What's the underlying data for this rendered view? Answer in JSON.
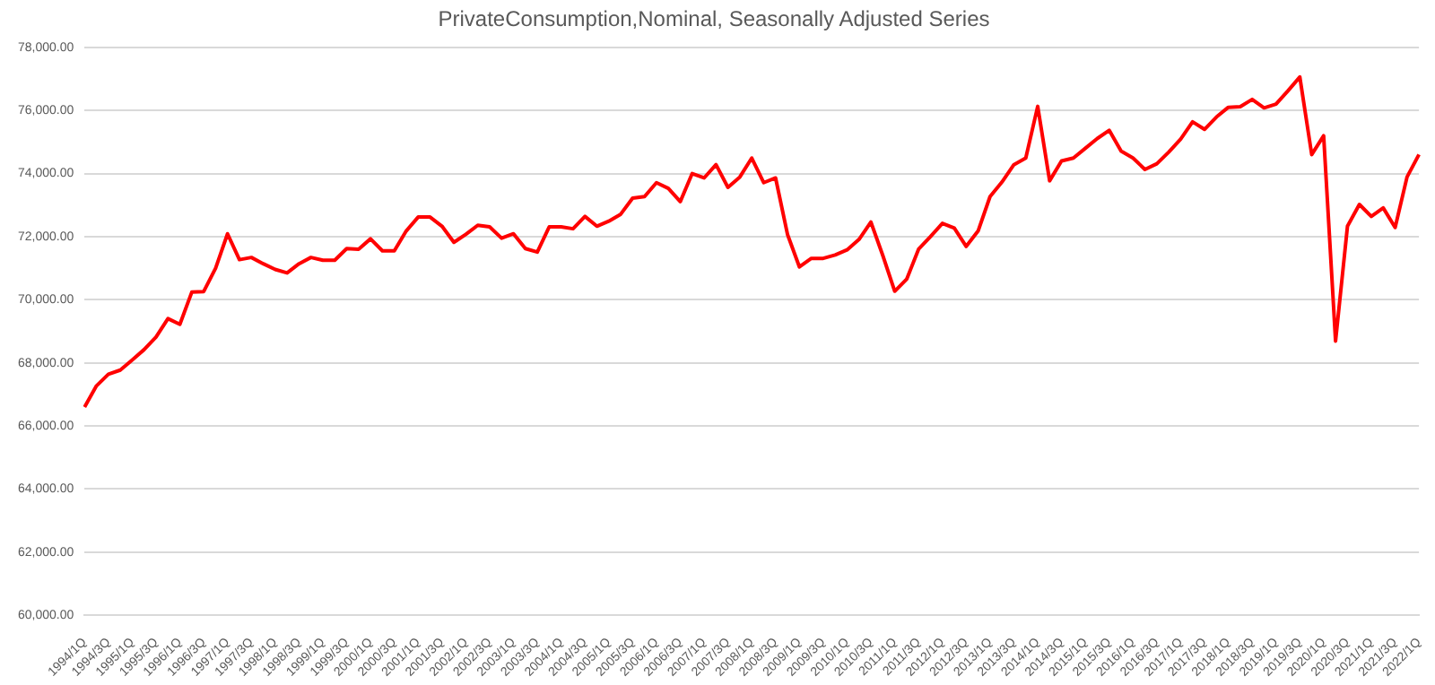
{
  "chart_data": {
    "type": "line",
    "title": "PrivateConsumption,Nominal, Seasonally Adjusted Series",
    "categories": [
      "1994/1Q",
      null,
      "1994/3Q",
      null,
      "1995/1Q",
      null,
      "1995/3Q",
      null,
      "1996/1Q",
      null,
      "1996/3Q",
      null,
      "1997/1Q",
      null,
      "1997/3Q",
      null,
      "1998/1Q",
      null,
      "1998/3Q",
      null,
      "1999/1Q",
      null,
      "1999/3Q",
      null,
      "2000/1Q",
      null,
      "2000/3Q",
      null,
      "2001/1Q",
      null,
      "2001/3Q",
      null,
      "2002/1Q",
      null,
      "2002/3Q",
      null,
      "2003/1Q",
      null,
      "2003/3Q",
      null,
      "2004/1Q",
      null,
      "2004/3Q",
      null,
      "2005/1Q",
      null,
      "2005/3Q",
      null,
      "2006/1Q",
      null,
      "2006/3Q",
      null,
      "2007/1Q",
      null,
      "2007/3Q",
      null,
      "2008/1Q",
      null,
      "2008/3Q",
      null,
      "2009/1Q",
      null,
      "2009/3Q",
      null,
      "2010/1Q",
      null,
      "2010/3Q",
      null,
      "2011/1Q",
      null,
      "2011/3Q",
      null,
      "2012/1Q",
      null,
      "2012/3Q",
      null,
      "2013/1Q",
      null,
      "2013/3Q",
      null,
      "2014/1Q",
      null,
      "2014/3Q",
      null,
      "2015/1Q",
      null,
      "2015/3Q",
      null,
      "2016/1Q",
      null,
      "2016/3Q",
      null,
      "2017/1Q",
      null,
      "2017/3Q",
      null,
      "2018/1Q",
      null,
      "2018/3Q",
      null,
      "2019/1Q",
      null,
      "2019/3Q",
      null,
      "2020/1Q",
      null,
      "2020/3Q",
      null,
      "2021/1Q",
      null,
      "2021/3Q",
      null,
      "2022/1Q"
    ],
    "series": [
      {
        "color": "#ff0000",
        "values": [
          66600,
          67270,
          67640,
          67770,
          68090,
          68420,
          68820,
          69400,
          69220,
          70240,
          70260,
          71000,
          72090,
          71270,
          71340,
          71140,
          70960,
          70850,
          71140,
          71340,
          71250,
          71250,
          71620,
          71600,
          71930,
          71550,
          71550,
          72180,
          72620,
          72620,
          72330,
          71820,
          72070,
          72360,
          72310,
          71950,
          72090,
          71620,
          71510,
          72310,
          72310,
          72250,
          72640,
          72330,
          72490,
          72710,
          73220,
          73270,
          73710,
          73530,
          73110,
          74000,
          73860,
          74280,
          73560,
          73890,
          74490,
          73710,
          73860,
          72070,
          71040,
          71310,
          71310,
          71420,
          71580,
          71910,
          72460,
          71400,
          70270,
          70650,
          71600,
          72000,
          72420,
          72270,
          71690,
          72180,
          73270,
          73730,
          74280,
          74490,
          76130,
          73770,
          74400,
          74490,
          74800,
          75110,
          75370,
          74710,
          74490,
          74130,
          74310,
          74680,
          75090,
          75640,
          75400,
          75790,
          76100,
          76120,
          76350,
          76080,
          76200,
          76620,
          77060,
          74600,
          75200,
          68690,
          72330,
          73020,
          72640,
          72910,
          72290,
          73890,
          74600
        ]
      }
    ],
    "ylim": [
      60000,
      78000
    ],
    "yticks": [
      {
        "value": 60000,
        "label": "60,000.00"
      },
      {
        "value": 62000,
        "label": "62,000.00"
      },
      {
        "value": 64000,
        "label": "64,000.00"
      },
      {
        "value": 66000,
        "label": "66,000.00"
      },
      {
        "value": 68000,
        "label": "68,000.00"
      },
      {
        "value": 70000,
        "label": "70,000.00"
      },
      {
        "value": 72000,
        "label": "72,000.00"
      },
      {
        "value": 74000,
        "label": "74,000.00"
      },
      {
        "value": 76000,
        "label": "76,000.00"
      },
      {
        "value": 78000,
        "label": "78,000.00"
      }
    ],
    "grid": "y",
    "legend": false,
    "marker": "none",
    "line_style": "solid"
  }
}
